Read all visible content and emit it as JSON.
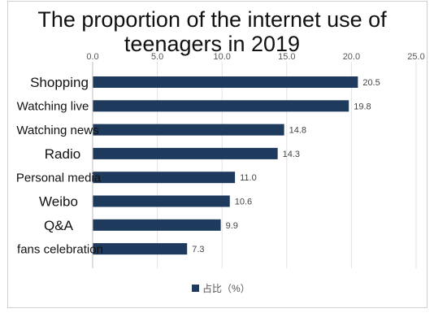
{
  "chart_data": {
    "type": "bar",
    "orientation": "horizontal",
    "title_lines": [
      "The proportion of the internet use of",
      "teenagers in 2019"
    ],
    "categories": [
      "Shopping",
      "Watching live",
      "Watching news",
      "Radio",
      "Personal media",
      "Weibo",
      "Q&A",
      "fans celebration"
    ],
    "series": [
      {
        "name": "占比（%）",
        "values": [
          20.5,
          19.8,
          14.8,
          14.3,
          11.0,
          10.6,
          9.9,
          7.3
        ]
      }
    ],
    "data_labels": [
      "20.5",
      "19.8",
      "14.8",
      "14.3",
      "11.0",
      "10.6",
      "9.9",
      "7.3"
    ],
    "x_ticks": [
      0,
      5,
      10,
      15,
      20,
      25
    ],
    "x_tick_labels": [
      "0.0",
      "5.0",
      "10.0",
      "15.0",
      "20.0",
      "25.0"
    ],
    "xlim": [
      0,
      25
    ],
    "xaxis_position": "top",
    "grid": "vertical",
    "legend_position": "bottom",
    "bar_color": "#1e3a5c"
  }
}
